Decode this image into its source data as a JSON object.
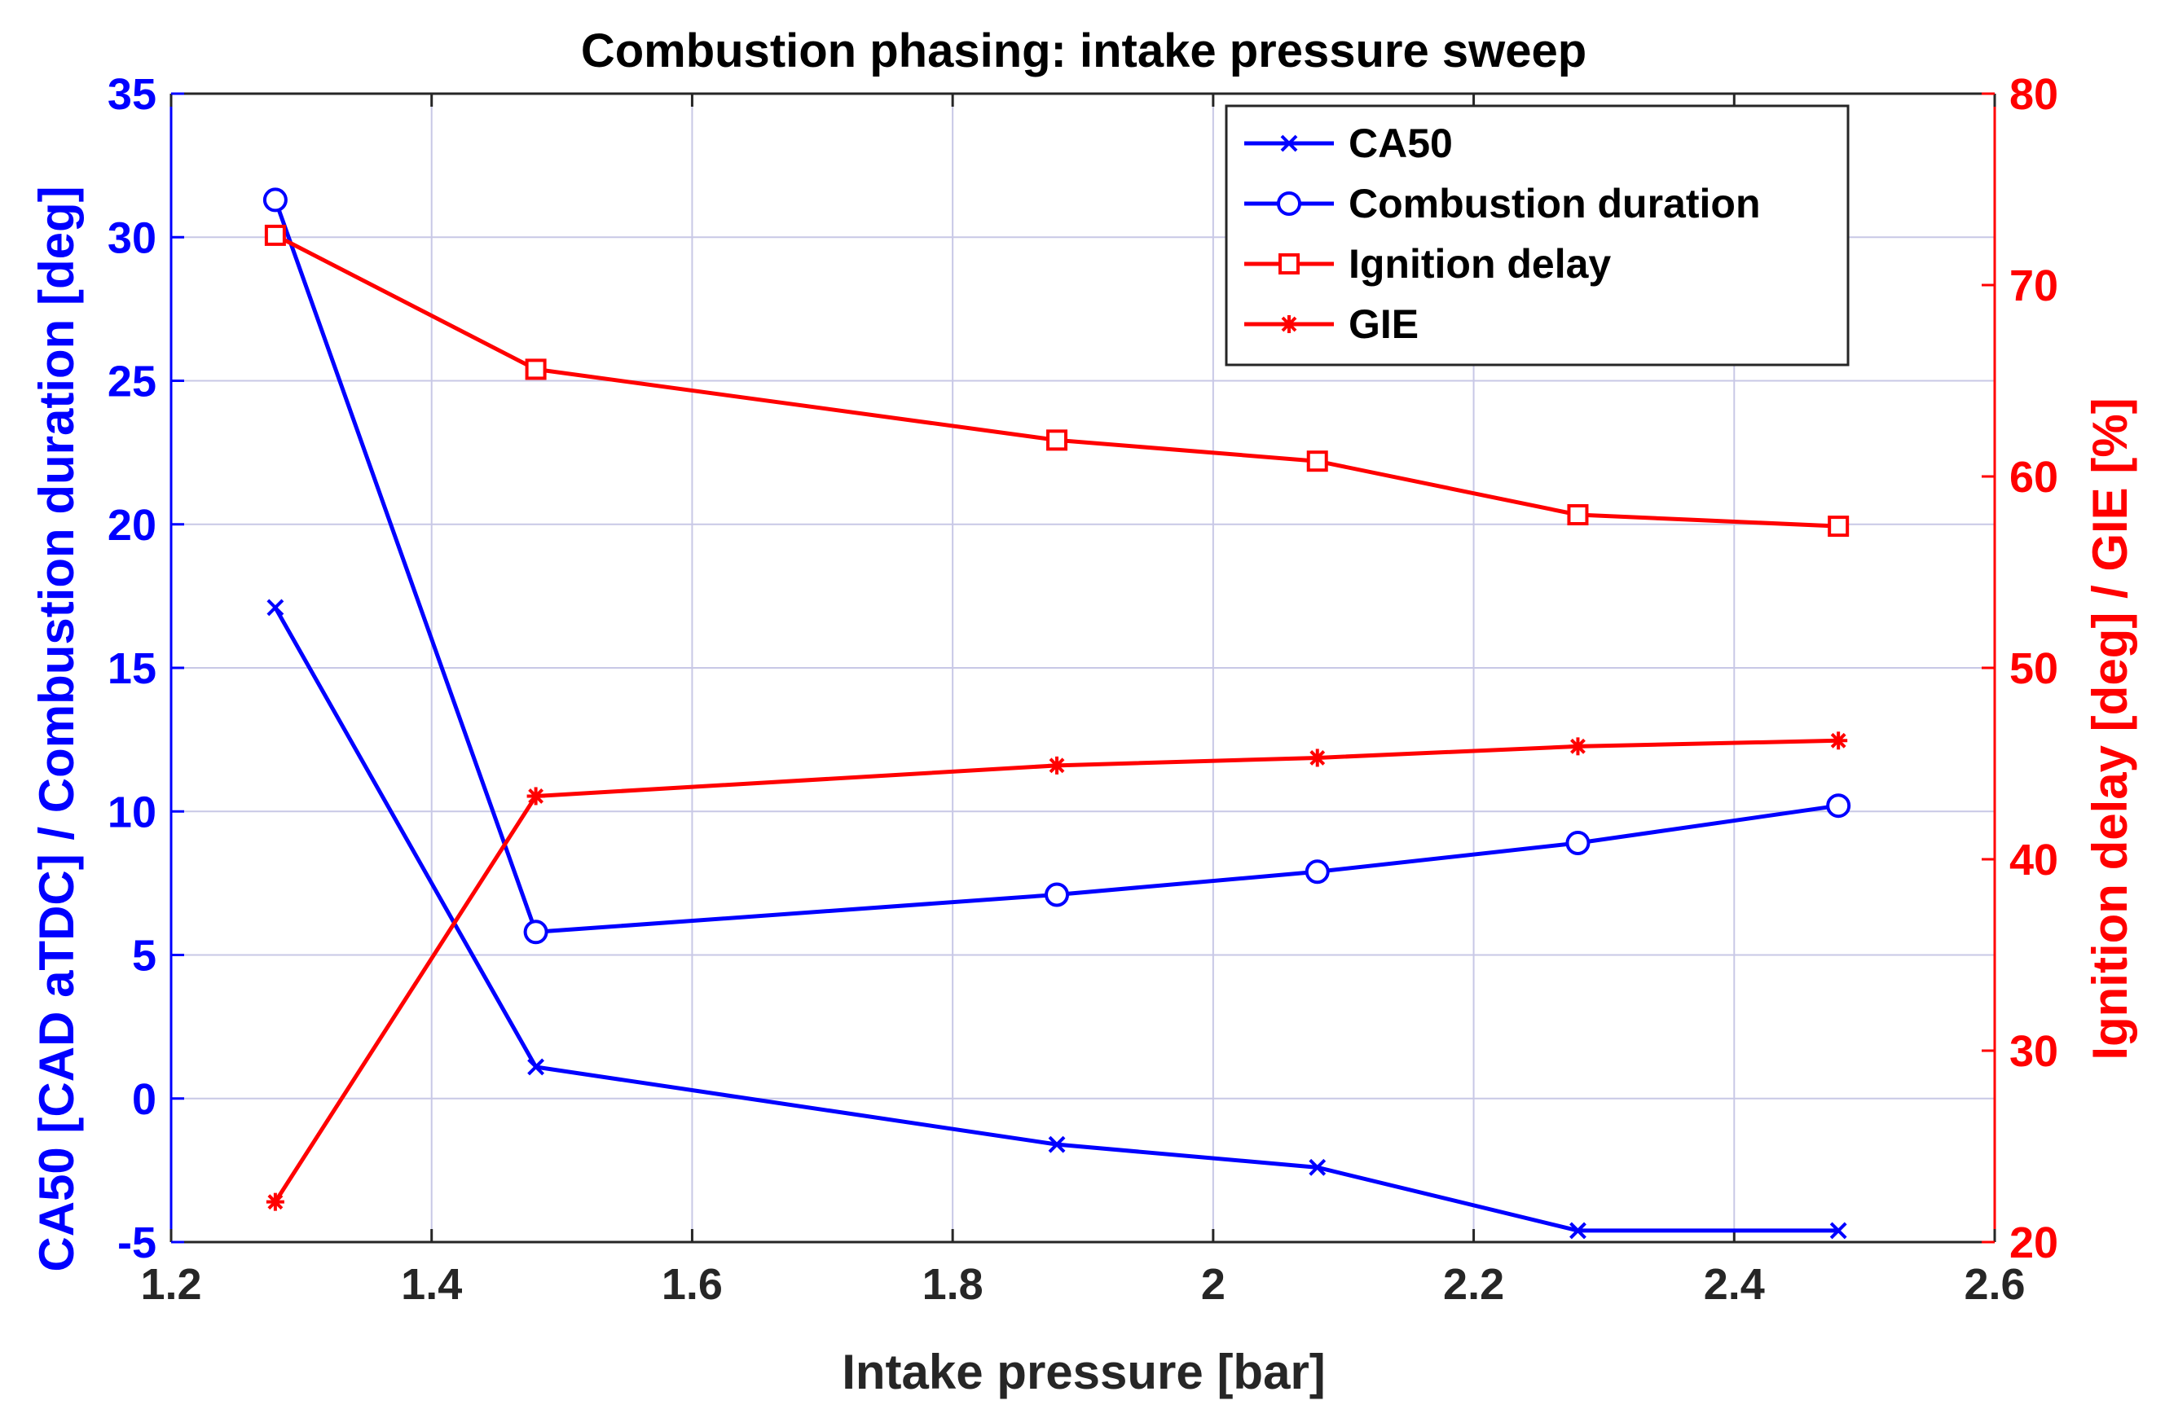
{
  "chart_data": {
    "type": "line",
    "title": "Combustion phasing: intake pressure sweep",
    "xlabel": "Intake pressure [bar]",
    "ylabel_left": "CA50 [CAD aTDC] / Combustion duration [deg]",
    "ylabel_right": "Ignition delay [deg] / GIE [%]",
    "xlim": [
      1.2,
      2.6
    ],
    "ylim_left": [
      -5,
      35
    ],
    "ylim_right": [
      20,
      80
    ],
    "x_ticks": [
      1.2,
      1.4,
      1.6,
      1.8,
      2,
      2.2,
      2.4,
      2.6
    ],
    "x_tick_labels": [
      "1.2",
      "1.4",
      "1.6",
      "1.8",
      "2",
      "2.2",
      "2.4",
      "2.6"
    ],
    "y_left_ticks": [
      -5,
      0,
      5,
      10,
      15,
      20,
      25,
      30,
      35
    ],
    "y_left_tick_labels": [
      "-5",
      "0",
      "5",
      "10",
      "15",
      "20",
      "25",
      "30",
      "35"
    ],
    "y_right_ticks": [
      20,
      30,
      40,
      50,
      60,
      70,
      80
    ],
    "y_right_tick_labels": [
      "20",
      "30",
      "40",
      "50",
      "60",
      "70",
      "80"
    ],
    "grid": true,
    "legend_position": "top-right",
    "colors": {
      "left_axis": "#0000ff",
      "right_axis": "#ff0000",
      "grid": "#c8c8e6",
      "axes": "#262626"
    },
    "x": [
      1.28,
      1.48,
      1.88,
      2.08,
      2.28,
      2.48
    ],
    "series": [
      {
        "name": "CA50",
        "axis": "left",
        "color": "#0000ff",
        "marker": "x",
        "values": [
          17.1,
          1.1,
          -1.6,
          -2.4,
          -4.6,
          -4.6
        ]
      },
      {
        "name": "Combustion duration",
        "axis": "left",
        "color": "#0000ff",
        "marker": "o",
        "values": [
          31.3,
          5.8,
          7.1,
          7.9,
          8.9,
          10.2
        ]
      },
      {
        "name": "Ignition delay",
        "axis": "right",
        "color": "#ff0000",
        "marker": "s",
        "values": [
          72.6,
          65.6,
          61.9,
          60.8,
          58.0,
          57.4
        ]
      },
      {
        "name": "GIE",
        "axis": "right",
        "color": "#ff0000",
        "marker": "*",
        "values": [
          22.1,
          43.3,
          44.9,
          45.3,
          45.9,
          46.2
        ]
      }
    ]
  }
}
